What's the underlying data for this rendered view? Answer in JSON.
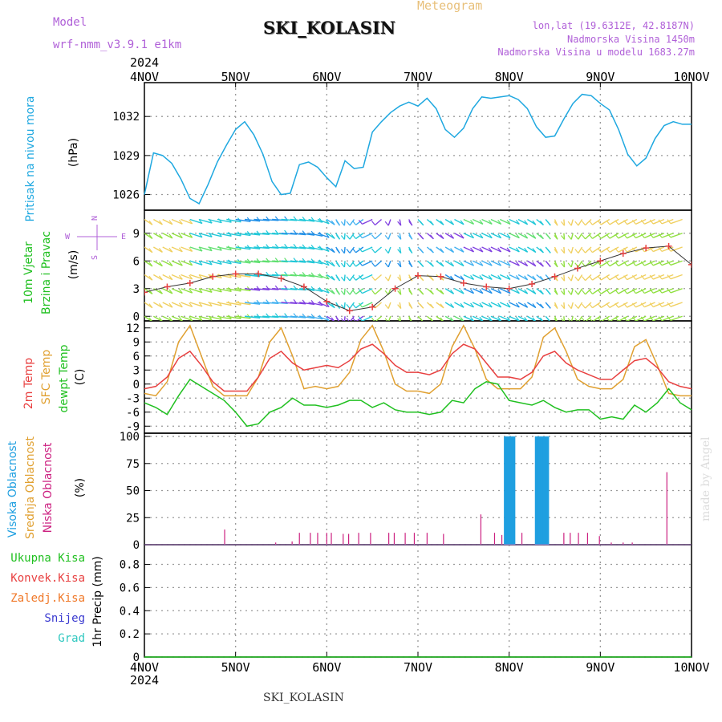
{
  "header": {
    "title": "SKI_KOLASIN",
    "meteogram_label": "Meteogram",
    "model_label": "Model",
    "model_name": "wrf-nmm_v3.9.1  e1km",
    "coords": "lon,lat (19.6312E, 42.8187N)",
    "elevation": "Nadmorska Visina 1450m",
    "model_elevation": "Nadmorska Visina u modelu 1683.27m",
    "footer_station": "SKI_KOLASIN",
    "watermark": "made by Angel"
  },
  "colors": {
    "pressure": "#1fa8e0",
    "temp2m": "#e84040",
    "sfc": "#e0a030",
    "dewpt": "#20c020",
    "high_cloud": "#1f9fe0",
    "mid_cloud": "#e0a030",
    "low_cloud": "#cc2080",
    "total_precip": "#20c020",
    "conv_precip": "#e84040",
    "frozen_precip": "#f07828",
    "snow": "#3a3ad0",
    "graupel": "#30c8c0",
    "label_purple": "#b060d8"
  },
  "chart_data": [
    {
      "type": "line",
      "name": "pressure",
      "year": "2024",
      "x_ticks": [
        "4NOV",
        "5NOV",
        "6NOV",
        "7NOV",
        "8NOV",
        "9NOV",
        "10NOV"
      ],
      "ylabel_lines": [
        "Pritisak na nivou mora",
        "(hPa)"
      ],
      "yticks": [
        1026,
        1029,
        1032
      ],
      "ylim": [
        1024.8,
        1034.6
      ],
      "grid": true,
      "x": [
        0,
        0.1,
        0.2,
        0.3,
        0.4,
        0.5,
        0.6,
        0.7,
        0.8,
        0.9,
        1.0,
        1.1,
        1.2,
        1.3,
        1.4,
        1.5,
        1.6,
        1.7,
        1.8,
        1.9,
        2.0,
        2.1,
        2.2,
        2.3,
        2.4,
        2.5,
        2.6,
        2.7,
        2.8,
        2.9,
        3.0,
        3.1,
        3.2,
        3.3,
        3.4,
        3.5,
        3.6,
        3.7,
        3.8,
        3.9,
        4.0,
        4.1,
        4.2,
        4.3,
        4.4,
        4.5,
        4.6,
        4.7,
        4.8,
        4.9,
        5.0,
        5.1,
        5.2,
        5.3,
        5.4,
        5.5,
        5.6,
        5.7,
        5.8,
        5.9,
        6.0
      ],
      "series": [
        {
          "values": [
            1026.0,
            1029.2,
            1029.0,
            1028.4,
            1027.2,
            1025.7,
            1025.3,
            1026.8,
            1028.5,
            1029.8,
            1031.0,
            1031.6,
            1030.6,
            1029.1,
            1027.0,
            1026.0,
            1026.1,
            1028.3,
            1028.5,
            1028.1,
            1027.3,
            1026.6,
            1028.6,
            1028.0,
            1028.1,
            1030.8,
            1031.6,
            1032.3,
            1032.8,
            1033.1,
            1032.8,
            1033.4,
            1032.6,
            1031.0,
            1030.4,
            1031.1,
            1032.6,
            1033.5,
            1033.4,
            1033.5,
            1033.6,
            1033.3,
            1032.6,
            1031.2,
            1030.4,
            1030.5,
            1031.8,
            1033.0,
            1033.7,
            1033.6,
            1033.0,
            1032.5,
            1031.0,
            1029.1,
            1028.2,
            1028.8,
            1030.3,
            1031.3,
            1031.6,
            1031.4,
            1031.4
          ]
        }
      ]
    },
    {
      "type": "barbs",
      "name": "wind",
      "ylabel_lines": [
        "10m Vjetar",
        "Brzina i Pravac",
        "(m/s)"
      ],
      "compass": [
        "N",
        "E",
        "W",
        "S"
      ],
      "yticks": [
        0,
        3,
        6,
        9
      ],
      "ylim": [
        -0.5,
        11.5
      ],
      "grid": true,
      "x": [
        0,
        0.25,
        0.5,
        0.75,
        1.0,
        1.25,
        1.5,
        1.75,
        2.0,
        2.25,
        2.5,
        2.75,
        3.0,
        3.25,
        3.5,
        3.75,
        4.0,
        4.25,
        4.5,
        4.75,
        5.0,
        5.25,
        5.5,
        5.75,
        6.0
      ],
      "series": [
        {
          "name": "speed",
          "values": [
            2.6,
            3.2,
            3.6,
            4.3,
            4.6,
            4.6,
            4.1,
            3.2,
            1.6,
            0.6,
            1.0,
            3.0,
            4.4,
            4.3,
            3.6,
            3.2,
            3.0,
            3.5,
            4.3,
            5.2,
            6.0,
            6.8,
            7.4,
            7.6,
            5.6
          ]
        }
      ],
      "direction_deg": [
        150,
        140,
        130,
        120,
        110,
        100,
        100,
        110,
        150,
        190,
        220,
        180,
        160,
        150,
        140,
        140,
        140,
        150,
        170,
        190,
        210,
        215,
        220,
        225,
        230
      ]
    },
    {
      "type": "line",
      "name": "temperature",
      "ylabel_lines": [
        "2m Temp",
        "SFC Temp",
        "dewpt Temp",
        "(C)"
      ],
      "yticks": [
        -9,
        -6,
        -3,
        0,
        3,
        6,
        9,
        12
      ],
      "ylim": [
        -10.5,
        13.5
      ],
      "grid": true,
      "x": [
        0,
        0.125,
        0.25,
        0.375,
        0.5,
        0.625,
        0.75,
        0.875,
        1.0,
        1.125,
        1.25,
        1.375,
        1.5,
        1.625,
        1.75,
        1.875,
        2.0,
        2.125,
        2.25,
        2.375,
        2.5,
        2.625,
        2.75,
        2.875,
        3.0,
        3.125,
        3.25,
        3.375,
        3.5,
        3.625,
        3.75,
        3.875,
        4.0,
        4.125,
        4.25,
        4.375,
        4.5,
        4.625,
        4.75,
        4.875,
        5.0,
        5.125,
        5.25,
        5.375,
        5.5,
        5.625,
        5.75,
        5.875,
        6.0
      ],
      "series": [
        {
          "name": "2m Temp",
          "values": [
            -1.0,
            -0.5,
            1.5,
            5.5,
            7.0,
            4.0,
            0.5,
            -1.5,
            -1.5,
            -1.5,
            1.5,
            5.5,
            7.0,
            4.5,
            3.0,
            3.5,
            4.0,
            3.5,
            5.0,
            7.5,
            8.5,
            6.5,
            4.0,
            2.5,
            2.5,
            2.0,
            3.0,
            6.5,
            8.5,
            7.5,
            4.5,
            1.5,
            1.5,
            1.0,
            2.5,
            6.0,
            7.0,
            4.5,
            3.0,
            2.0,
            1.0,
            1.0,
            3.0,
            5.0,
            5.5,
            3.5,
            0.5,
            -0.5,
            -1.0
          ]
        },
        {
          "name": "SFC Temp",
          "values": [
            -2.0,
            -2.5,
            0.5,
            9.0,
            12.5,
            6.0,
            -0.5,
            -2.5,
            -2.5,
            -2.5,
            1.5,
            9.0,
            12.0,
            6.0,
            -1.0,
            -0.5,
            -1.0,
            -0.5,
            2.5,
            9.5,
            12.5,
            7.0,
            0.0,
            -1.5,
            -1.5,
            -2.0,
            0.0,
            8.0,
            12.5,
            7.5,
            1.0,
            -1.0,
            -1.0,
            -1.0,
            1.5,
            10.0,
            12.0,
            7.0,
            1.0,
            -0.5,
            -1.0,
            -1.0,
            1.0,
            8.0,
            9.5,
            4.0,
            -2.0,
            -2.5,
            -2.5
          ]
        },
        {
          "name": "dewpt Temp",
          "values": [
            -4.0,
            -5.0,
            -6.5,
            -2.5,
            1.0,
            -0.5,
            -2.0,
            -3.5,
            -6.0,
            -9.0,
            -8.5,
            -6.0,
            -5.0,
            -3.0,
            -4.5,
            -4.5,
            -5.0,
            -4.5,
            -3.5,
            -3.5,
            -5.0,
            -4.0,
            -5.5,
            -6.0,
            -6.0,
            -6.5,
            -6.0,
            -3.5,
            -4.0,
            -1.0,
            0.5,
            0.0,
            -3.5,
            -4.0,
            -4.5,
            -3.5,
            -5.0,
            -6.0,
            -5.5,
            -5.5,
            -7.5,
            -7.0,
            -7.5,
            -4.5,
            -6.0,
            -4.0,
            -1.0,
            -4.0,
            -5.5
          ]
        }
      ]
    },
    {
      "type": "bar",
      "name": "clouds",
      "ylabel_lines": [
        "Visoka Oblacnost",
        "Srednja Oblacnost",
        "Niska Oblacnost",
        "(%)"
      ],
      "yticks": [
        0,
        25,
        50,
        75,
        100
      ],
      "ylim": [
        0,
        103
      ],
      "grid": true,
      "series": [
        {
          "name": "Visoka Oblacnost",
          "x": [
            3.96,
            3.99,
            4.02,
            4.05,
            4.3,
            4.33,
            4.36,
            4.39,
            4.42
          ],
          "values": [
            100,
            100,
            100,
            100,
            100,
            100,
            100,
            100,
            100
          ]
        },
        {
          "name": "Niska Oblacnost",
          "x": [
            0.88,
            1.44,
            1.62,
            1.7,
            1.82,
            1.9,
            2.0,
            2.05,
            2.18,
            2.24,
            2.35,
            2.48,
            2.68,
            2.74,
            2.86,
            2.96,
            3.1,
            3.28,
            3.69,
            3.84,
            3.92,
            4.14,
            4.6,
            4.67,
            4.76,
            4.86,
            4.99,
            5.12,
            5.25,
            5.35,
            5.73
          ],
          "values": [
            14,
            2,
            3,
            11,
            11,
            11,
            11,
            11,
            10,
            10,
            11,
            11,
            11,
            11,
            11,
            11,
            11,
            10,
            28,
            11,
            9,
            11,
            11,
            11,
            11,
            11,
            8,
            2,
            2,
            2,
            67
          ]
        }
      ]
    },
    {
      "type": "line",
      "name": "precipitation",
      "ylabel_lines": [
        "1hr Precip (mm)"
      ],
      "legend": [
        "Ukupna Kisa",
        "Konvek.Kisa",
        "Zaledj.Kisa",
        "Snijeg",
        "Grad"
      ],
      "yticks": [
        0,
        0.2,
        0.4,
        0.6,
        0.8
      ],
      "ylim": [
        0,
        0.97
      ],
      "grid": true,
      "series": [
        {
          "name": "Ukupna Kisa",
          "values": [
            0,
            0
          ]
        }
      ],
      "x": [
        0,
        6
      ],
      "x_ticks": [
        "4NOV",
        "5NOV",
        "6NOV",
        "7NOV",
        "8NOV",
        "9NOV",
        "10NOV"
      ],
      "year": "2024"
    }
  ]
}
